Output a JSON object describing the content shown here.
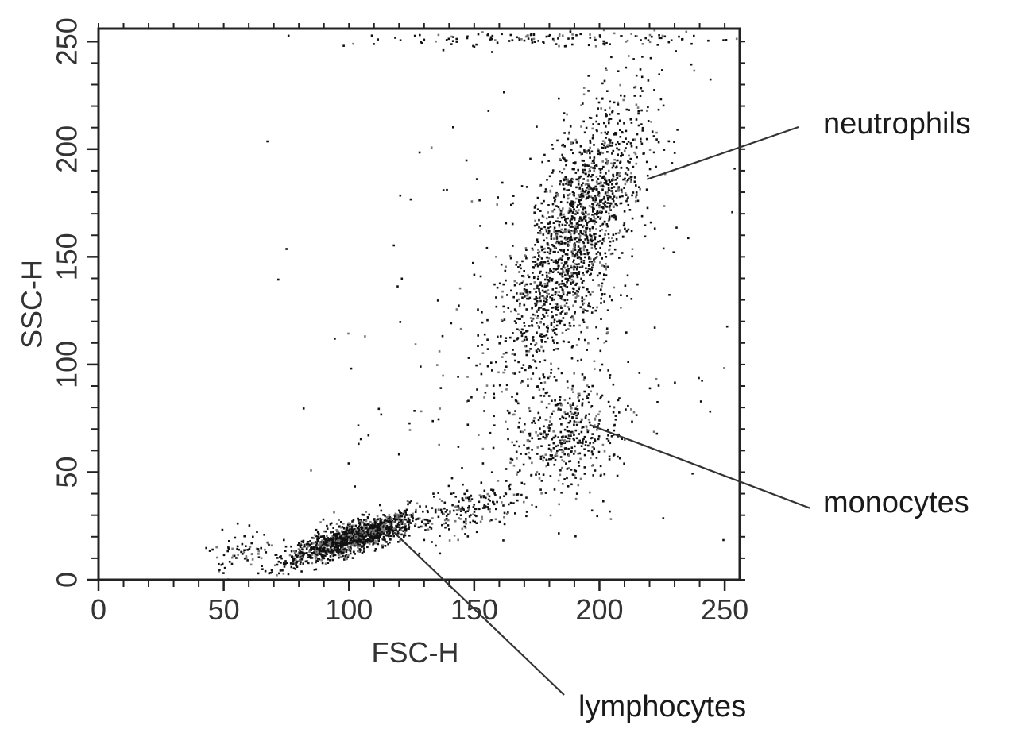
{
  "chart_data": {
    "type": "scatter",
    "title": "",
    "xlabel": "FSC-H",
    "ylabel": "SSC-H",
    "xlim": [
      0,
      256
    ],
    "ylim": [
      0,
      256
    ],
    "x_ticks": [
      0,
      50,
      100,
      150,
      200,
      250
    ],
    "y_ticks": [
      0,
      50,
      100,
      150,
      200,
      250
    ],
    "grid": false,
    "colors": {
      "points": "#111111",
      "axis": "#222222",
      "annotation_line": "#333333"
    },
    "series": [
      {
        "clusters": [
          {
            "center": [
              101,
              20
            ],
            "count": 1400,
            "sx": 13,
            "sy": 6,
            "corr": 0.82
          },
          {
            "center": [
              57,
              14
            ],
            "count": 70,
            "sx": 7,
            "sy": 5,
            "corr": 0.2
          },
          {
            "center": [
              150,
              33
            ],
            "count": 180,
            "sx": 11,
            "sy": 7,
            "corr": 0.6
          },
          {
            "center": [
              187,
              67
            ],
            "count": 420,
            "sx": 11,
            "sy": 14,
            "corr": 0.2
          },
          {
            "center": [
              190,
              160
            ],
            "count": 1700,
            "sx": 14,
            "sy": 32,
            "corr": 0.72
          },
          {
            "center": [
              180,
              252
            ],
            "count": 140,
            "sx": 40,
            "sy": 2,
            "corr": 0.0
          },
          {
            "center": [
              170,
              120
            ],
            "count": 260,
            "sx": 40,
            "sy": 60,
            "corr": 0.2
          }
        ]
      }
    ],
    "annotations": [
      {
        "label": "neutrophils",
        "point": [
          219,
          186
        ]
      },
      {
        "label": "monocytes",
        "point": [
          196,
          72
        ]
      },
      {
        "label": "lymphocytes",
        "point": [
          118,
          22
        ]
      }
    ]
  }
}
